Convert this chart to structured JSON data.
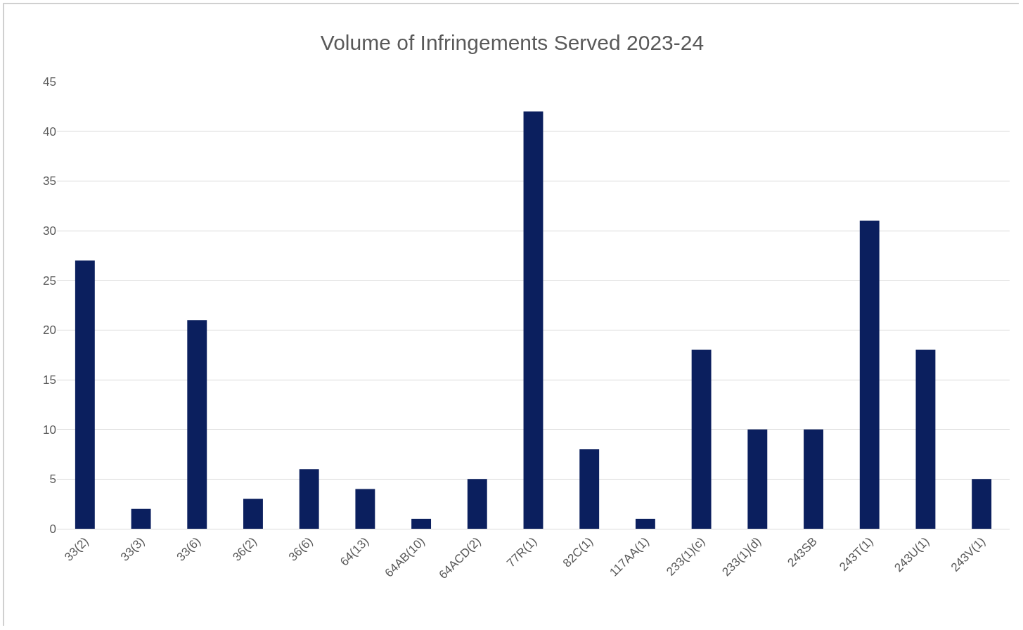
{
  "chart_data": {
    "type": "bar",
    "title": "Volume of Infringements Served 2023-24",
    "categories": [
      "33(2)",
      "33(3)",
      "33(6)",
      "36(2)",
      "36(6)",
      "64(13)",
      "64AB(10)",
      "64ACD(2)",
      "77R(1)",
      "82C(1)",
      "117AA(1)",
      "233(1)(c)",
      "233(1)(d)",
      "243SB",
      "243T(1)",
      "243U(1)",
      "243V(1)"
    ],
    "values": [
      27,
      2,
      21,
      3,
      6,
      4,
      1,
      5,
      42,
      8,
      1,
      18,
      10,
      10,
      31,
      18,
      5
    ],
    "color": "#0b1f5e",
    "ylim": [
      0,
      45
    ],
    "yticks": [
      0,
      5,
      10,
      15,
      20,
      25,
      30,
      35,
      40,
      45
    ],
    "grid": "y"
  }
}
